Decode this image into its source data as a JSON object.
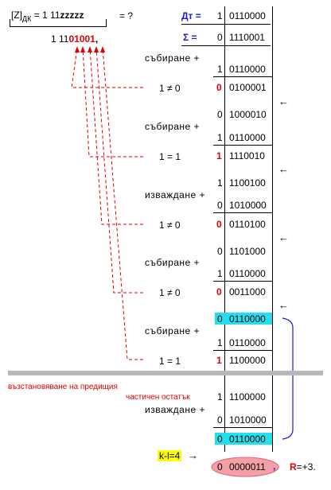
{
  "header": {
    "z_open": "[Z]",
    "z_sub": "ДК",
    "z_eq": "= 1  11",
    "z_bits": "zzzzz",
    "question": "= ?",
    "dt_label": "Дт =",
    "dt_sign": "1",
    "dt_value": "0110000",
    "sigma_label": "Σ =",
    "sigma_sign": "0",
    "sigma_value": "1110001"
  },
  "partial": {
    "prefix": "1  11",
    "bits": "01001",
    "comma": ","
  },
  "steps": [
    {
      "op": "събиране +"
    },
    {
      "cmp": "1 ≠ 0"
    },
    {
      "op": "събиране +"
    },
    {
      "cmp": "1 = 1"
    },
    {
      "op": "изваждане +"
    },
    {
      "cmp": "1 ≠ 0"
    },
    {
      "op": "събиране +"
    },
    {
      "cmp": "1 ≠ 0"
    },
    {
      "op": "събиране +"
    },
    {
      "cmp": "1 = 1"
    },
    {
      "op": "изваждане +"
    }
  ],
  "rows": [
    {
      "sign": "1",
      "value": "0110000"
    },
    {
      "sign": "0",
      "value": "0100001"
    },
    {
      "sign": "0",
      "value": "1000010"
    },
    {
      "sign": "1",
      "value": "0110000"
    },
    {
      "sign": "1",
      "value": "1110010"
    },
    {
      "sign": "1",
      "value": "1100100"
    },
    {
      "sign": "0",
      "value": "1010000"
    },
    {
      "sign": "0",
      "value": "0110100"
    },
    {
      "sign": "0",
      "value": "1101000"
    },
    {
      "sign": "1",
      "value": "0110000"
    },
    {
      "sign": "0",
      "value": "0011000"
    },
    {
      "sign": "0",
      "value": "0110000"
    },
    {
      "sign": "1",
      "value": "0110000"
    },
    {
      "sign": "1",
      "value": "1100000"
    },
    {
      "sign": "1",
      "value": "1100000"
    },
    {
      "sign": "0",
      "value": "1010000"
    },
    {
      "sign": "0",
      "value": "0110000"
    },
    {
      "sign": "0",
      "value": "0000011"
    }
  ],
  "restore_note_1": "възстановяване на предищия",
  "restore_note_2": "частичен остатък",
  "kl_label": "k-l=4",
  "kl_arrow": "→",
  "result_comma": ",",
  "result_r": "R",
  "result_value": "=+3.",
  "left_arrow": "←"
}
